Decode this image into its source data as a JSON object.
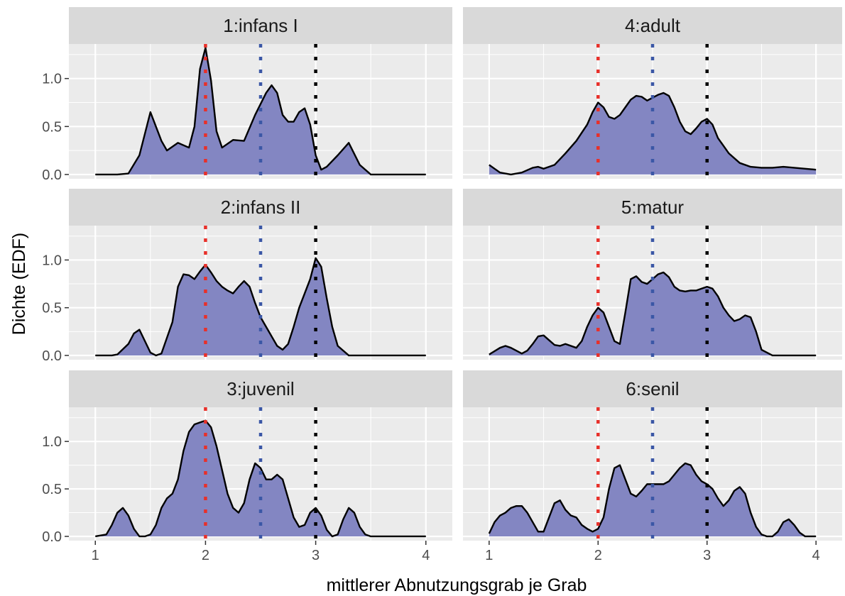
{
  "chart_data": {
    "type": "area",
    "xlabel": "mittlerer Abnutzungsgrab je Grab",
    "ylabel": "Dichte (EDF)",
    "xlim": [
      1,
      4
    ],
    "ylim": [
      0,
      1.3
    ],
    "x_ticks": [
      "1",
      "2",
      "3",
      "4"
    ],
    "y_ticks": [
      "0.0",
      "0.5",
      "1.0"
    ],
    "grid": true,
    "legend": "none",
    "colors": {
      "fill": "#8386c2",
      "line": "#000000",
      "panel_bg": "#ebebeb",
      "strip_bg": "#d9d9d9",
      "grid": "#ffffff",
      "ref_red": "#e8302a",
      "ref_blue": "#3b57a6",
      "ref_black": "#000000"
    },
    "reference_lines": [
      {
        "x": 2.0,
        "color": "red"
      },
      {
        "x": 2.5,
        "color": "blue"
      },
      {
        "x": 3.0,
        "color": "black"
      }
    ],
    "layout": "3 rows x 2 columns",
    "panels": [
      {
        "label": "1:infans I",
        "x": [
          1.0,
          1.2,
          1.3,
          1.4,
          1.5,
          1.6,
          1.65,
          1.75,
          1.85,
          1.9,
          1.95,
          2.0,
          2.05,
          2.1,
          2.15,
          2.25,
          2.35,
          2.45,
          2.55,
          2.6,
          2.65,
          2.7,
          2.75,
          2.8,
          2.85,
          2.9,
          2.95,
          3.0,
          3.05,
          3.1,
          3.2,
          3.3,
          3.4,
          3.5,
          3.7,
          4.0
        ],
        "y": [
          0.0,
          0.0,
          0.01,
          0.2,
          0.65,
          0.35,
          0.25,
          0.33,
          0.28,
          0.5,
          1.1,
          1.32,
          0.98,
          0.45,
          0.28,
          0.36,
          0.35,
          0.62,
          0.85,
          0.93,
          0.85,
          0.62,
          0.55,
          0.55,
          0.65,
          0.69,
          0.52,
          0.2,
          0.05,
          0.08,
          0.2,
          0.33,
          0.1,
          0.0,
          0.0,
          0.0
        ]
      },
      {
        "label": "4:adult",
        "x": [
          1.0,
          1.05,
          1.1,
          1.2,
          1.3,
          1.4,
          1.45,
          1.5,
          1.6,
          1.7,
          1.8,
          1.9,
          1.95,
          2.0,
          2.05,
          2.1,
          2.15,
          2.2,
          2.25,
          2.3,
          2.35,
          2.4,
          2.45,
          2.5,
          2.55,
          2.6,
          2.65,
          2.7,
          2.75,
          2.8,
          2.85,
          2.9,
          2.95,
          3.0,
          3.05,
          3.1,
          3.2,
          3.3,
          3.4,
          3.5,
          3.6,
          3.7,
          3.8,
          3.9,
          4.0
        ],
        "y": [
          0.1,
          0.06,
          0.02,
          0.0,
          0.02,
          0.07,
          0.08,
          0.06,
          0.1,
          0.22,
          0.35,
          0.52,
          0.65,
          0.75,
          0.7,
          0.6,
          0.58,
          0.62,
          0.7,
          0.78,
          0.82,
          0.81,
          0.77,
          0.8,
          0.83,
          0.85,
          0.82,
          0.7,
          0.55,
          0.45,
          0.42,
          0.48,
          0.55,
          0.58,
          0.52,
          0.38,
          0.22,
          0.12,
          0.08,
          0.07,
          0.07,
          0.08,
          0.07,
          0.06,
          0.05
        ]
      },
      {
        "label": "2:infans II",
        "x": [
          1.0,
          1.15,
          1.2,
          1.3,
          1.35,
          1.4,
          1.45,
          1.5,
          1.55,
          1.6,
          1.7,
          1.75,
          1.8,
          1.85,
          1.9,
          1.95,
          2.0,
          2.05,
          2.1,
          2.15,
          2.2,
          2.25,
          2.3,
          2.35,
          2.4,
          2.45,
          2.5,
          2.55,
          2.6,
          2.65,
          2.7,
          2.75,
          2.8,
          2.85,
          2.9,
          2.95,
          3.0,
          3.05,
          3.1,
          3.15,
          3.2,
          3.3,
          3.5,
          4.0
        ],
        "y": [
          0.0,
          0.0,
          0.01,
          0.12,
          0.23,
          0.27,
          0.15,
          0.03,
          0.0,
          0.02,
          0.35,
          0.72,
          0.85,
          0.84,
          0.8,
          0.88,
          0.95,
          0.87,
          0.78,
          0.72,
          0.68,
          0.65,
          0.72,
          0.78,
          0.72,
          0.55,
          0.4,
          0.3,
          0.2,
          0.1,
          0.06,
          0.12,
          0.3,
          0.5,
          0.65,
          0.8,
          1.02,
          0.93,
          0.6,
          0.3,
          0.1,
          0.0,
          0.0,
          0.0
        ]
      },
      {
        "label": "5:matur",
        "x": [
          1.0,
          1.1,
          1.15,
          1.2,
          1.3,
          1.35,
          1.4,
          1.45,
          1.5,
          1.55,
          1.6,
          1.65,
          1.7,
          1.8,
          1.85,
          1.9,
          1.95,
          2.0,
          2.05,
          2.1,
          2.15,
          2.2,
          2.25,
          2.3,
          2.35,
          2.4,
          2.45,
          2.5,
          2.55,
          2.6,
          2.65,
          2.7,
          2.75,
          2.8,
          2.85,
          2.9,
          2.95,
          3.0,
          3.05,
          3.1,
          3.15,
          3.2,
          3.25,
          3.3,
          3.35,
          3.4,
          3.45,
          3.5,
          3.6,
          4.0
        ],
        "y": [
          0.01,
          0.08,
          0.1,
          0.08,
          0.02,
          0.05,
          0.12,
          0.2,
          0.21,
          0.16,
          0.11,
          0.1,
          0.12,
          0.08,
          0.15,
          0.3,
          0.42,
          0.5,
          0.45,
          0.3,
          0.15,
          0.12,
          0.45,
          0.8,
          0.83,
          0.77,
          0.75,
          0.8,
          0.85,
          0.87,
          0.82,
          0.72,
          0.68,
          0.67,
          0.68,
          0.68,
          0.7,
          0.72,
          0.7,
          0.62,
          0.5,
          0.42,
          0.36,
          0.38,
          0.42,
          0.4,
          0.25,
          0.06,
          0.0,
          0.0
        ]
      },
      {
        "label": "3:juvenil",
        "x": [
          1.0,
          1.1,
          1.15,
          1.2,
          1.25,
          1.3,
          1.35,
          1.4,
          1.45,
          1.5,
          1.55,
          1.6,
          1.65,
          1.7,
          1.75,
          1.8,
          1.85,
          1.9,
          1.95,
          2.0,
          2.05,
          2.1,
          2.15,
          2.2,
          2.25,
          2.3,
          2.35,
          2.4,
          2.45,
          2.5,
          2.55,
          2.6,
          2.65,
          2.7,
          2.75,
          2.8,
          2.85,
          2.9,
          2.95,
          3.0,
          3.05,
          3.1,
          3.15,
          3.2,
          3.25,
          3.3,
          3.35,
          3.4,
          3.45,
          3.5,
          3.6,
          4.0
        ],
        "y": [
          0.0,
          0.02,
          0.12,
          0.25,
          0.3,
          0.22,
          0.08,
          0.0,
          0.0,
          0.02,
          0.12,
          0.3,
          0.4,
          0.45,
          0.6,
          0.9,
          1.1,
          1.18,
          1.2,
          1.22,
          1.15,
          0.95,
          0.7,
          0.45,
          0.3,
          0.25,
          0.35,
          0.6,
          0.77,
          0.72,
          0.6,
          0.6,
          0.65,
          0.6,
          0.4,
          0.2,
          0.1,
          0.12,
          0.25,
          0.3,
          0.22,
          0.07,
          0.0,
          0.02,
          0.18,
          0.3,
          0.25,
          0.1,
          0.02,
          0.0,
          0.0,
          0.0
        ]
      },
      {
        "label": "6:senil",
        "x": [
          1.0,
          1.05,
          1.1,
          1.15,
          1.2,
          1.25,
          1.3,
          1.35,
          1.4,
          1.45,
          1.5,
          1.55,
          1.6,
          1.65,
          1.7,
          1.75,
          1.8,
          1.85,
          1.9,
          1.95,
          2.0,
          2.05,
          2.1,
          2.15,
          2.2,
          2.25,
          2.3,
          2.35,
          2.4,
          2.45,
          2.5,
          2.55,
          2.6,
          2.65,
          2.7,
          2.75,
          2.8,
          2.85,
          2.9,
          2.95,
          3.0,
          3.05,
          3.1,
          3.15,
          3.2,
          3.25,
          3.3,
          3.35,
          3.4,
          3.45,
          3.5,
          3.55,
          3.6,
          3.65,
          3.7,
          3.75,
          3.8,
          3.85,
          3.9,
          4.0
        ],
        "y": [
          0.03,
          0.15,
          0.22,
          0.25,
          0.3,
          0.32,
          0.32,
          0.25,
          0.15,
          0.05,
          0.05,
          0.2,
          0.35,
          0.38,
          0.28,
          0.22,
          0.2,
          0.12,
          0.08,
          0.05,
          0.08,
          0.2,
          0.5,
          0.72,
          0.75,
          0.6,
          0.45,
          0.42,
          0.48,
          0.55,
          0.55,
          0.55,
          0.55,
          0.58,
          0.65,
          0.72,
          0.77,
          0.75,
          0.65,
          0.58,
          0.55,
          0.5,
          0.4,
          0.32,
          0.38,
          0.48,
          0.52,
          0.45,
          0.25,
          0.1,
          0.02,
          0.0,
          0.0,
          0.05,
          0.15,
          0.18,
          0.12,
          0.04,
          0.0,
          0.0
        ]
      }
    ]
  }
}
